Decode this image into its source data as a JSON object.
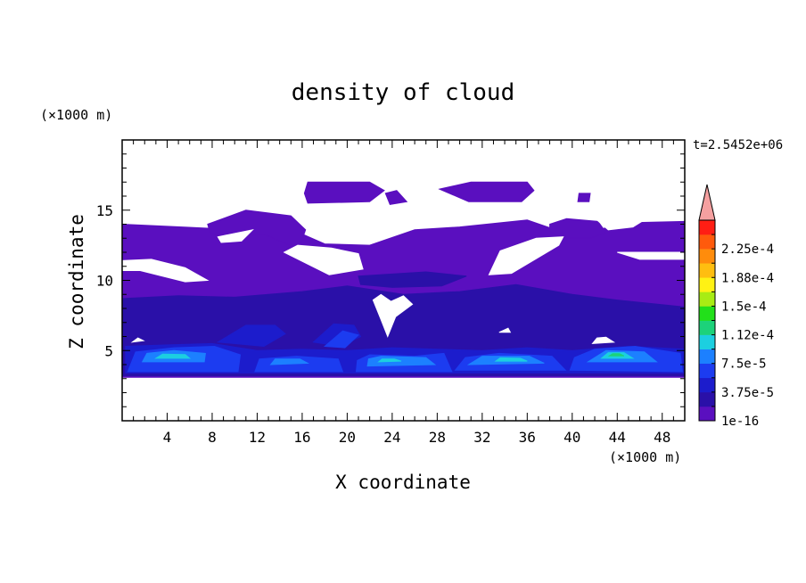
{
  "chart_data": {
    "type": "heatmap",
    "title": "density of cloud",
    "xlabel": "X coordinate",
    "ylabel": "Z coordinate",
    "x_unit": "(×1000 m)",
    "y_unit": "(×1000 m)",
    "time_label": "t=2.5452e+06",
    "xlim": [
      0,
      50
    ],
    "ylim": [
      0,
      20
    ],
    "x_ticks": [
      4,
      8,
      12,
      16,
      20,
      24,
      28,
      32,
      36,
      40,
      44,
      48
    ],
    "x_tick_labels": [
      "4",
      "8",
      "12",
      "16",
      "20",
      "24",
      "28",
      "32",
      "36",
      "40",
      "44",
      "48"
    ],
    "y_ticks": [
      5,
      10,
      15
    ],
    "y_tick_labels": [
      "5",
      "10",
      "15"
    ],
    "colorbar": {
      "levels": [
        1e-16,
        1.875e-05,
        3.75e-05,
        5.625e-05,
        7.5e-05,
        9.375e-05,
        0.0001125,
        0.00013125,
        0.00015,
        0.00016875,
        0.0001875,
        0.00020625,
        0.000225,
        0.00024375
      ],
      "tick_labels": [
        {
          "level": 0,
          "text": "1e-16"
        },
        {
          "level": 2,
          "text": "3.75e-5"
        },
        {
          "level": 4,
          "text": "7.5e-5"
        },
        {
          "level": 6,
          "text": "1.12e-4"
        },
        {
          "level": 8,
          "text": "1.5e-4"
        },
        {
          "level": 10,
          "text": "1.88e-4"
        },
        {
          "level": 12,
          "text": "2.25e-4"
        }
      ],
      "colors": [
        "#5a0fbf",
        "#2a10a8",
        "#1c1ccc",
        "#1c3cf0",
        "#1c80ff",
        "#1ccfe0",
        "#1cd27a",
        "#22e01a",
        "#a8ec14",
        "#fff214",
        "#ffbe10",
        "#ff8c0c",
        "#ff5a0c",
        "#ff1e14"
      ],
      "over_color": "#f5a0a0"
    },
    "fields": [
      {
        "level": 0,
        "polygons": [
          [
            [
              0,
              3.1
            ],
            [
              50,
              3.1
            ],
            [
              50,
              14.2
            ],
            [
              45,
              14.1
            ],
            [
              40,
              13.2
            ],
            [
              36,
              14.3
            ],
            [
              30,
              13.8
            ],
            [
              26,
              13.6
            ],
            [
              22,
              12.5
            ],
            [
              18,
              12.6
            ],
            [
              14,
              14.0
            ],
            [
              8,
              13.7
            ],
            [
              0,
              14.0
            ]
          ],
          [
            [
              16.5,
              15.5
            ],
            [
              22,
              15.6
            ],
            [
              23.3,
              16.4
            ],
            [
              22,
              17.0
            ],
            [
              16.5,
              17.0
            ],
            [
              16.2,
              16.2
            ]
          ],
          [
            [
              23.8,
              15.4
            ],
            [
              25.3,
              15.6
            ],
            [
              24.4,
              16.4
            ],
            [
              23.4,
              16.2
            ]
          ],
          [
            [
              28.2,
              16.5
            ],
            [
              31,
              17.0
            ],
            [
              36,
              17.0
            ],
            [
              36.6,
              16.4
            ],
            [
              35.5,
              15.6
            ],
            [
              30.8,
              15.6
            ]
          ],
          [
            [
              40.5,
              15.6
            ],
            [
              41.5,
              15.6
            ],
            [
              41.6,
              16.2
            ],
            [
              40.6,
              16.2
            ]
          ],
          [
            [
              7.6,
              14.0
            ],
            [
              11,
              15.0
            ],
            [
              15,
              14.6
            ],
            [
              16.3,
              13.6
            ],
            [
              15.7,
              12.2
            ],
            [
              12.6,
              13.3
            ],
            [
              9.3,
              13.0
            ],
            [
              7.8,
              13.4
            ]
          ],
          [
            [
              38,
              14.0
            ],
            [
              39.5,
              14.4
            ],
            [
              42.3,
              14.2
            ],
            [
              43,
              13.4
            ],
            [
              41.6,
              13.0
            ],
            [
              39.2,
              13.0
            ],
            [
              38,
              13.5
            ]
          ]
        ]
      },
      {
        "level": 1,
        "polygons": [
          [
            [
              0,
              3.2
            ],
            [
              50,
              3.2
            ],
            [
              50,
              8.1
            ],
            [
              44,
              8.6
            ],
            [
              40,
              9.0
            ],
            [
              35,
              9.7
            ],
            [
              30,
              9.2
            ],
            [
              25,
              9.0
            ],
            [
              20,
              9.6
            ],
            [
              16,
              9.2
            ],
            [
              10,
              8.8
            ],
            [
              5,
              8.9
            ],
            [
              0,
              8.7
            ]
          ],
          [
            [
              21,
              10.3
            ],
            [
              27,
              10.6
            ],
            [
              30.6,
              10.3
            ],
            [
              28.4,
              9.6
            ],
            [
              24,
              9.5
            ],
            [
              21.2,
              9.7
            ]
          ]
        ]
      },
      {
        "level": 2,
        "polygons": [
          [
            [
              0.3,
              3.4
            ],
            [
              50,
              3.4
            ],
            [
              50,
              5.1
            ],
            [
              45,
              5.3
            ],
            [
              40,
              5.0
            ],
            [
              36,
              5.2
            ],
            [
              32,
              5.0
            ],
            [
              28,
              5.1
            ],
            [
              24,
              5.2
            ],
            [
              20,
              5.0
            ],
            [
              16,
              5.1
            ],
            [
              12,
              5.0
            ],
            [
              8,
              5.5
            ],
            [
              4,
              5.4
            ],
            [
              0.3,
              5.3
            ]
          ],
          [
            [
              8.5,
              5.6
            ],
            [
              11,
              6.8
            ],
            [
              13.6,
              6.8
            ],
            [
              14.5,
              6.2
            ],
            [
              12.6,
              5.3
            ]
          ],
          [
            [
              17,
              5.6
            ],
            [
              18.8,
              6.9
            ],
            [
              20.6,
              6.8
            ],
            [
              21.2,
              6.0
            ],
            [
              19.4,
              5.3
            ]
          ]
        ]
      },
      {
        "level": 3,
        "polygons": [
          [
            [
              0.5,
              3.5
            ],
            [
              10.3,
              3.5
            ],
            [
              10.5,
              4.7
            ],
            [
              8.2,
              5.3
            ],
            [
              4.6,
              5.2
            ],
            [
              1.2,
              4.9
            ]
          ],
          [
            [
              11.8,
              3.5
            ],
            [
              19.6,
              3.5
            ],
            [
              19.2,
              4.4
            ],
            [
              15.5,
              4.6
            ],
            [
              12.2,
              4.4
            ]
          ],
          [
            [
              20.8,
              3.5
            ],
            [
              29.3,
              3.5
            ],
            [
              28.6,
              4.8
            ],
            [
              26,
              4.6
            ],
            [
              22,
              4.7
            ],
            [
              20.9,
              4.3
            ]
          ],
          [
            [
              29.6,
              3.6
            ],
            [
              39.4,
              3.6
            ],
            [
              38.2,
              4.6
            ],
            [
              33.5,
              4.8
            ],
            [
              30.5,
              4.5
            ]
          ],
          [
            [
              39.8,
              3.6
            ],
            [
              49.8,
              3.5
            ],
            [
              49.6,
              4.8
            ],
            [
              45.6,
              5.3
            ],
            [
              42,
              5.1
            ],
            [
              40.2,
              4.5
            ]
          ],
          [
            [
              18,
              5.3
            ],
            [
              19.6,
              6.4
            ],
            [
              21,
              6.1
            ],
            [
              19.8,
              5.2
            ]
          ]
        ]
      },
      {
        "level": 4,
        "polygons": [
          [
            [
              1.8,
              4.2
            ],
            [
              7.3,
              4.2
            ],
            [
              7.4,
              4.8
            ],
            [
              4.6,
              5.0
            ],
            [
              2.2,
              4.8
            ]
          ],
          [
            [
              13.2,
              4.0
            ],
            [
              16.5,
              4.1
            ],
            [
              15.8,
              4.4
            ],
            [
              13.6,
              4.4
            ]
          ],
          [
            [
              21.8,
              3.9
            ],
            [
              27.8,
              4.0
            ],
            [
              27,
              4.5
            ],
            [
              23,
              4.6
            ],
            [
              21.9,
              4.4
            ]
          ],
          [
            [
              30.8,
              4.0
            ],
            [
              37.5,
              4.1
            ],
            [
              36.2,
              4.6
            ],
            [
              32,
              4.6
            ]
          ],
          [
            [
              41.4,
              4.2
            ],
            [
              47.5,
              4.2
            ],
            [
              46.4,
              4.9
            ],
            [
              43,
              5.0
            ]
          ]
        ]
      },
      {
        "level": 5,
        "polygons": [
          [
            [
              3,
              4.45
            ],
            [
              6,
              4.45
            ],
            [
              5.6,
              4.72
            ],
            [
              3.6,
              4.74
            ]
          ],
          [
            [
              22.8,
              4.2
            ],
            [
              24.8,
              4.25
            ],
            [
              24.2,
              4.4
            ],
            [
              23.1,
              4.4
            ]
          ],
          [
            [
              33.2,
              4.25
            ],
            [
              36,
              4.25
            ],
            [
              35.4,
              4.45
            ],
            [
              33.6,
              4.48
            ]
          ],
          [
            [
              42.6,
              4.45
            ],
            [
              45.4,
              4.45
            ],
            [
              44.6,
              4.85
            ],
            [
              43.2,
              4.85
            ]
          ]
        ]
      },
      {
        "level": 6,
        "polygons": [
          [
            [
              43.3,
              4.62
            ],
            [
              44.6,
              4.62
            ],
            [
              44.2,
              4.78
            ],
            [
              43.6,
              4.78
            ]
          ]
        ]
      }
    ],
    "clear_regions": [
      {
        "polygons": [
          [
            [
              -0.5,
              10.7
            ],
            [
              1.6,
              10.7
            ],
            [
              5.6,
              9.9
            ],
            [
              7.6,
              10.0
            ],
            [
              5.6,
              10.9
            ],
            [
              2.6,
              11.5
            ],
            [
              -0.5,
              11.4
            ]
          ],
          [
            [
              14.4,
              12.0
            ],
            [
              18.4,
              10.4
            ],
            [
              21.4,
              10.8
            ],
            [
              21,
              11.9
            ],
            [
              18.6,
              12.3
            ],
            [
              15.6,
              12.5
            ]
          ],
          [
            [
              32.6,
              10.4
            ],
            [
              34.6,
              10.5
            ],
            [
              38.8,
              12.5
            ],
            [
              39.2,
              13.1
            ],
            [
              36.8,
              13.0
            ],
            [
              33.6,
              12.1
            ]
          ],
          [
            [
              44,
              12.0
            ],
            [
              50.5,
              12.0
            ],
            [
              50.5,
              11.5
            ],
            [
              46,
              11.5
            ]
          ],
          [
            [
              8.5,
              13.1
            ],
            [
              11.6,
              13.6
            ],
            [
              10.6,
              12.8
            ],
            [
              8.8,
              12.7
            ]
          ],
          [
            [
              42.2,
              14.3
            ],
            [
              46.6,
              14.4
            ],
            [
              45.4,
              13.8
            ],
            [
              43.2,
              13.6
            ]
          ],
          [
            [
              22.3,
              8.6
            ],
            [
              23,
              7.2
            ],
            [
              23.6,
              6.0
            ],
            [
              24.3,
              7.4
            ],
            [
              25.8,
              8.3
            ],
            [
              25,
              8.9
            ],
            [
              23.9,
              8.5
            ],
            [
              23,
              9.0
            ]
          ],
          [
            [
              41.8,
              5.5
            ],
            [
              43.7,
              5.6
            ],
            [
              43,
              5.95
            ],
            [
              42.2,
              5.9
            ]
          ],
          [
            [
              33.5,
              6.3
            ],
            [
              34.5,
              6.3
            ],
            [
              34.3,
              6.6
            ]
          ],
          [
            [
              0.9,
              5.6
            ],
            [
              1.9,
              5.7
            ],
            [
              1.4,
              5.9
            ]
          ]
        ]
      }
    ],
    "legend": "right",
    "grid": false
  }
}
